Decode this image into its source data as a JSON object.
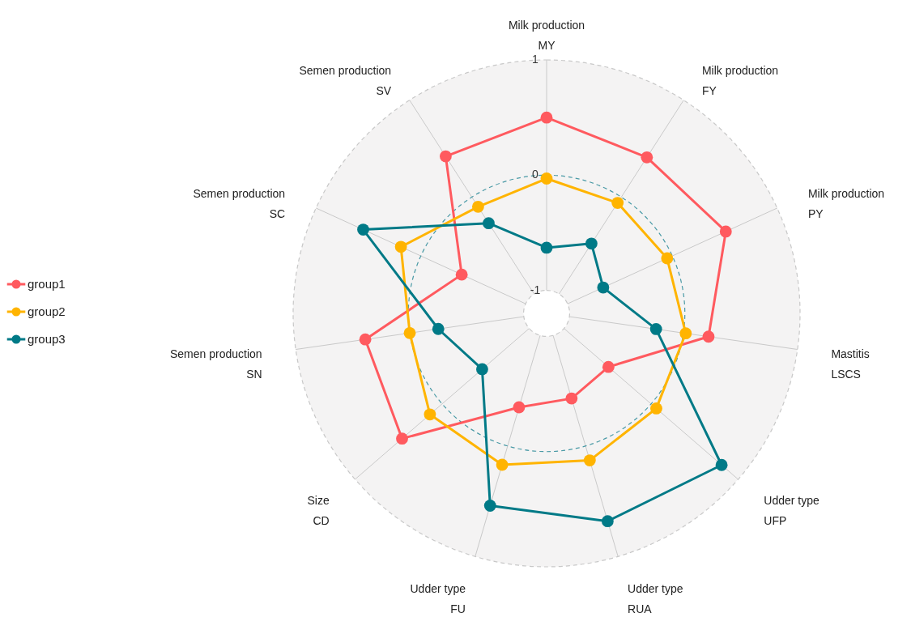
{
  "chart_data": {
    "type": "radar",
    "categories": [
      "Milk production\nMY",
      "Milk production\nFY",
      "Milk production\nPY",
      "Mastitis\nLSCS",
      "Udder type\nUFP",
      "Udder type\nRUA",
      "Udder type\nFU",
      "Size\nCD",
      "Semen production\nSN",
      "Semen production\nSC",
      "Semen production\nSV"
    ],
    "series": [
      {
        "name": "group1",
        "color": "#ff5a5f",
        "values": [
          0.5,
          0.41,
          0.51,
          0.22,
          -0.49,
          -0.43,
          -0.35,
          0.46,
          0.39,
          -0.39,
          0.42
        ]
      },
      {
        "name": "group2",
        "color": "#ffb400",
        "values": [
          -0.03,
          -0.06,
          -0.05,
          0.02,
          0.06,
          0.13,
          0.17,
          0.14,
          0.0,
          0.19,
          -0.1
        ]
      },
      {
        "name": "group3",
        "color": "#007a87",
        "values": [
          -0.63,
          -0.48,
          -0.66,
          -0.24,
          0.81,
          0.68,
          0.54,
          -0.46,
          -0.25,
          0.55,
          -0.27
        ]
      }
    ],
    "ylim": [
      -1.2,
      1
    ],
    "yticks": [
      -1,
      0,
      1
    ],
    "grid": true,
    "legend": "left",
    "marker": "circle",
    "line_style": "solid"
  }
}
